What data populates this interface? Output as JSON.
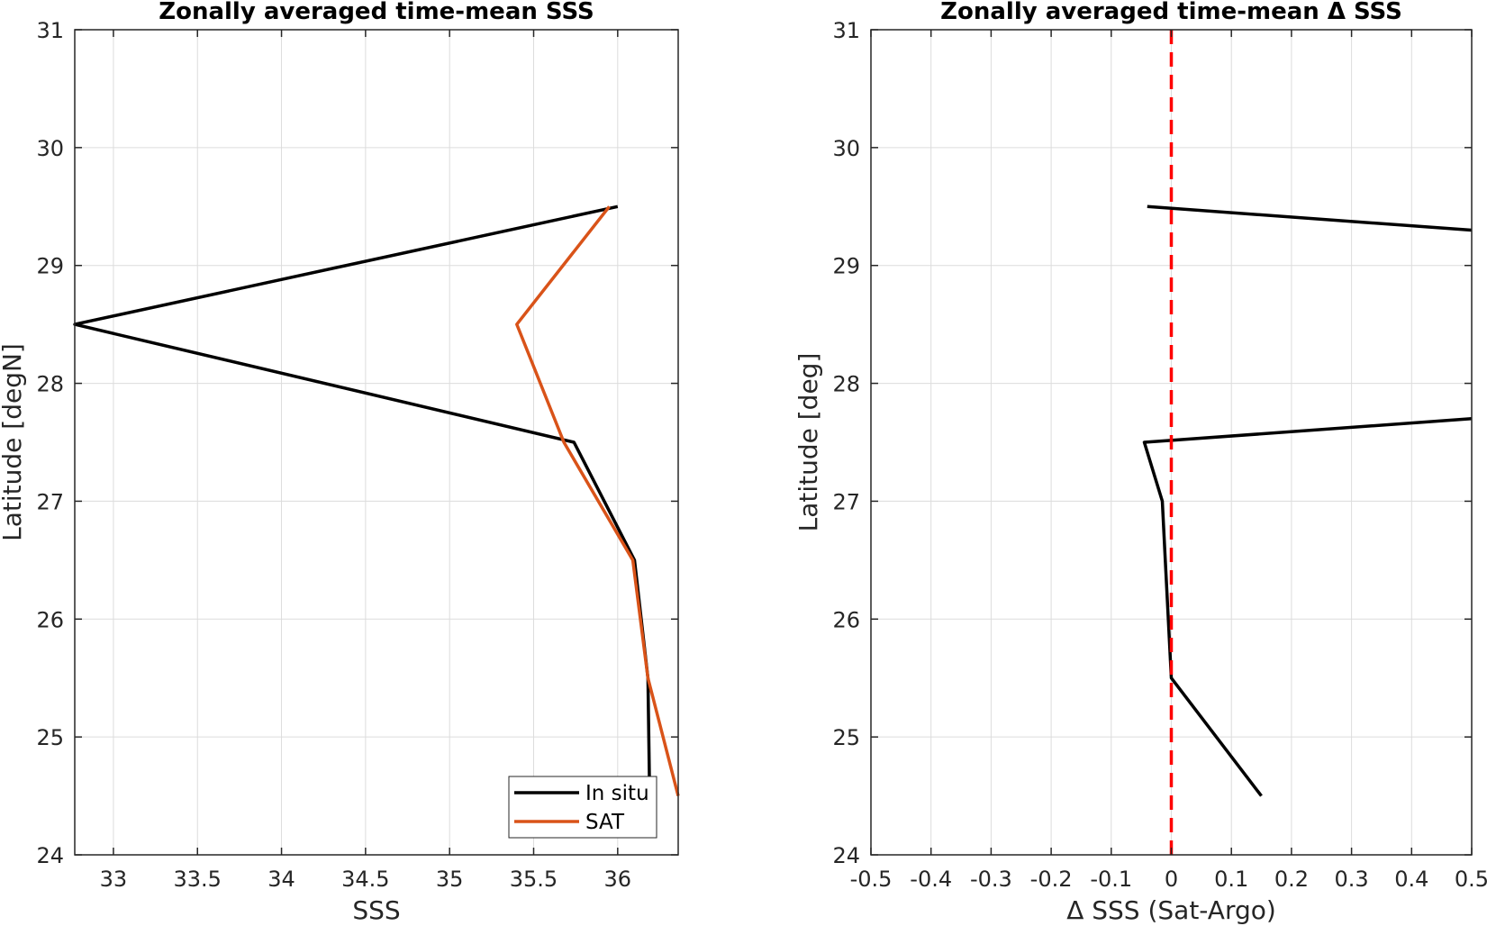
{
  "chart_data": [
    {
      "type": "line",
      "title": "Zonally averaged time-mean SSS",
      "xlabel": "SSS",
      "ylabel": "Latitude [degN]",
      "xlim": [
        32.77,
        36.36
      ],
      "ylim": [
        24,
        31
      ],
      "xticks": [
        33,
        33.5,
        34,
        34.5,
        35,
        35.5,
        36
      ],
      "xtick_labels": [
        "33",
        "33.5",
        "34",
        "34.5",
        "35",
        "35.5",
        "36"
      ],
      "yticks": [
        24,
        25,
        26,
        27,
        28,
        29,
        30,
        31
      ],
      "ytick_labels": [
        "24",
        "25",
        "26",
        "27",
        "28",
        "29",
        "30",
        "31"
      ],
      "grid": true,
      "legend_position": "bottom-right",
      "series": [
        {
          "name": "In situ",
          "color": "#000000",
          "x": [
            36.19,
            36.19,
            36.18,
            36.1,
            35.74,
            32.77,
            36.0
          ],
          "y": [
            24.2,
            24.5,
            25.5,
            26.5,
            27.5,
            28.5,
            29.5
          ]
        },
        {
          "name": "SAT",
          "color": "#d95319",
          "x": [
            36.36,
            36.18,
            36.09,
            35.68,
            35.4,
            35.95
          ],
          "y": [
            24.5,
            25.5,
            26.5,
            27.5,
            28.5,
            29.5
          ]
        }
      ]
    },
    {
      "type": "line",
      "title": "Zonally averaged time-mean Δ SSS",
      "xlabel": "Δ SSS (Sat-Argo)",
      "ylabel": "Latitude [deg]",
      "xlim": [
        -0.5,
        0.5
      ],
      "ylim": [
        24,
        31
      ],
      "xticks": [
        -0.5,
        -0.4,
        -0.3,
        -0.2,
        -0.1,
        0,
        0.1,
        0.2,
        0.3,
        0.4,
        0.5
      ],
      "xtick_labels": [
        "-0.5",
        "-0.4",
        "-0.3",
        "-0.2",
        "-0.1",
        "0",
        "0.1",
        "0.2",
        "0.3",
        "0.4",
        "0.5"
      ],
      "yticks": [
        24,
        25,
        26,
        27,
        28,
        29,
        30,
        31
      ],
      "ytick_labels": [
        "24",
        "25",
        "26",
        "27",
        "28",
        "29",
        "30",
        "31"
      ],
      "grid": true,
      "series": [
        {
          "color": "#000000",
          "segments": [
            {
              "x": [
                0.15,
                0.0,
                -0.01,
                -0.015,
                -0.045,
                0.5
              ],
              "y": [
                24.5,
                25.5,
                26.5,
                27.0,
                27.5,
                27.7
              ]
            },
            {
              "x": [
                -0.04,
                0.5
              ],
              "y": [
                29.5,
                29.3
              ]
            }
          ]
        },
        {
          "color": "#ff0000",
          "style": "dashed",
          "x": [
            0,
            0
          ],
          "y": [
            24,
            31
          ]
        }
      ]
    }
  ]
}
